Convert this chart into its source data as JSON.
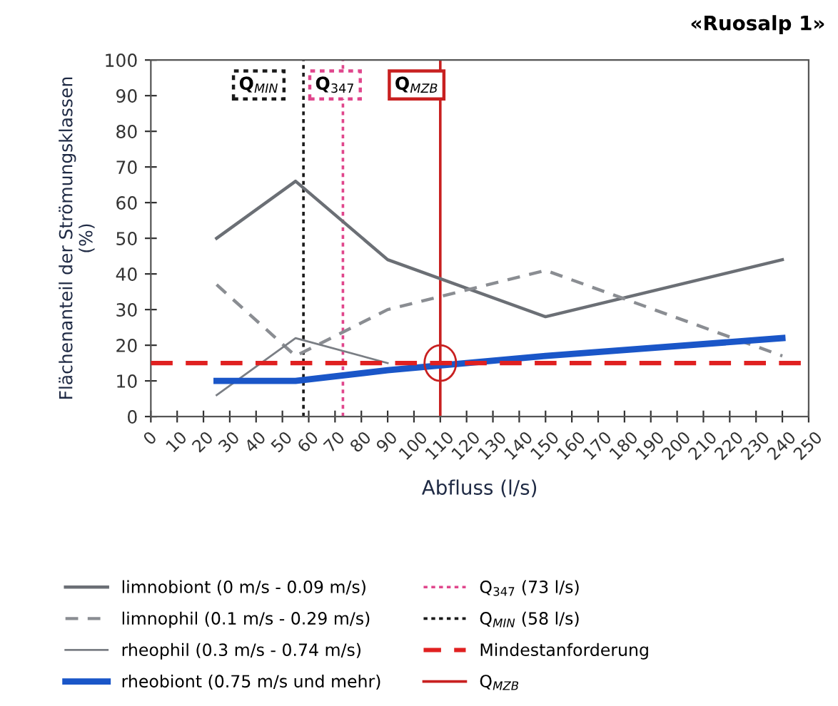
{
  "chart_data": {
    "type": "line",
    "title": "«Ruosalp 1»",
    "xlabel": "Abfluss (l/s)",
    "ylabel": "Flächenanteil der Strömungsklassen\n(%)",
    "x": [
      25,
      55,
      90,
      150,
      240
    ],
    "series": [
      {
        "name": "limnobiont (0 m/s - 0.09 m/s)",
        "color": "#6b6f75",
        "line_style": "solid",
        "values": [
          50,
          66,
          44,
          28,
          44
        ]
      },
      {
        "name": "limnophil (0.1 m/s - 0.29 m/s)",
        "color": "#8a8d92",
        "line_style": "dashed",
        "values": [
          37,
          17,
          30,
          41,
          17
        ]
      },
      {
        "name": "rheophil (0.3 m/s - 0.74 m/s)",
        "color": "#7a7e84",
        "line_style": "solid",
        "values": [
          6,
          22,
          15,
          null,
          null
        ]
      },
      {
        "name": "rheobiont (0.75 m/s und mehr)",
        "color": "#1a56c8",
        "line_style": "solid",
        "values": [
          10,
          10,
          13,
          17,
          22
        ]
      }
    ],
    "ref_lines": [
      {
        "axis": "x",
        "value": 73,
        "label": "Q$_{347}$ (73 l/s)",
        "color": "#e0468c",
        "line_style": "dotted"
      },
      {
        "axis": "x",
        "value": 58,
        "label": "Q$_{MIN}$ (58 l/s)",
        "color": "#1a1a1a",
        "line_style": "dotted"
      },
      {
        "axis": "y",
        "value": 15,
        "label": "Mindestanforderung",
        "color": "#e02020",
        "line_style": "dashed"
      },
      {
        "axis": "x",
        "value": 110,
        "label": "Q$_{MZB}$",
        "color": "#c82020",
        "line_style": "solid"
      }
    ],
    "annotations": [
      {
        "text": "Q$_{MIN}$",
        "x": 41,
        "y": 93
      },
      {
        "text": "Q$_{347}$",
        "x": 70,
        "y": 93
      },
      {
        "text": "Q$_{MZB}$",
        "x": 101,
        "y": 93
      }
    ],
    "xlim": [
      0,
      250
    ],
    "xticks": [
      0,
      10,
      20,
      30,
      40,
      50,
      60,
      70,
      80,
      90,
      100,
      110,
      120,
      130,
      140,
      150,
      160,
      170,
      180,
      190,
      200,
      210,
      220,
      230,
      240,
      250
    ],
    "ylim": [
      0,
      100
    ],
    "yticks": [
      0,
      10,
      20,
      30,
      40,
      50,
      60,
      70,
      80,
      90,
      100
    ],
    "grid": false,
    "legend": "bottom",
    "marker": "none"
  }
}
